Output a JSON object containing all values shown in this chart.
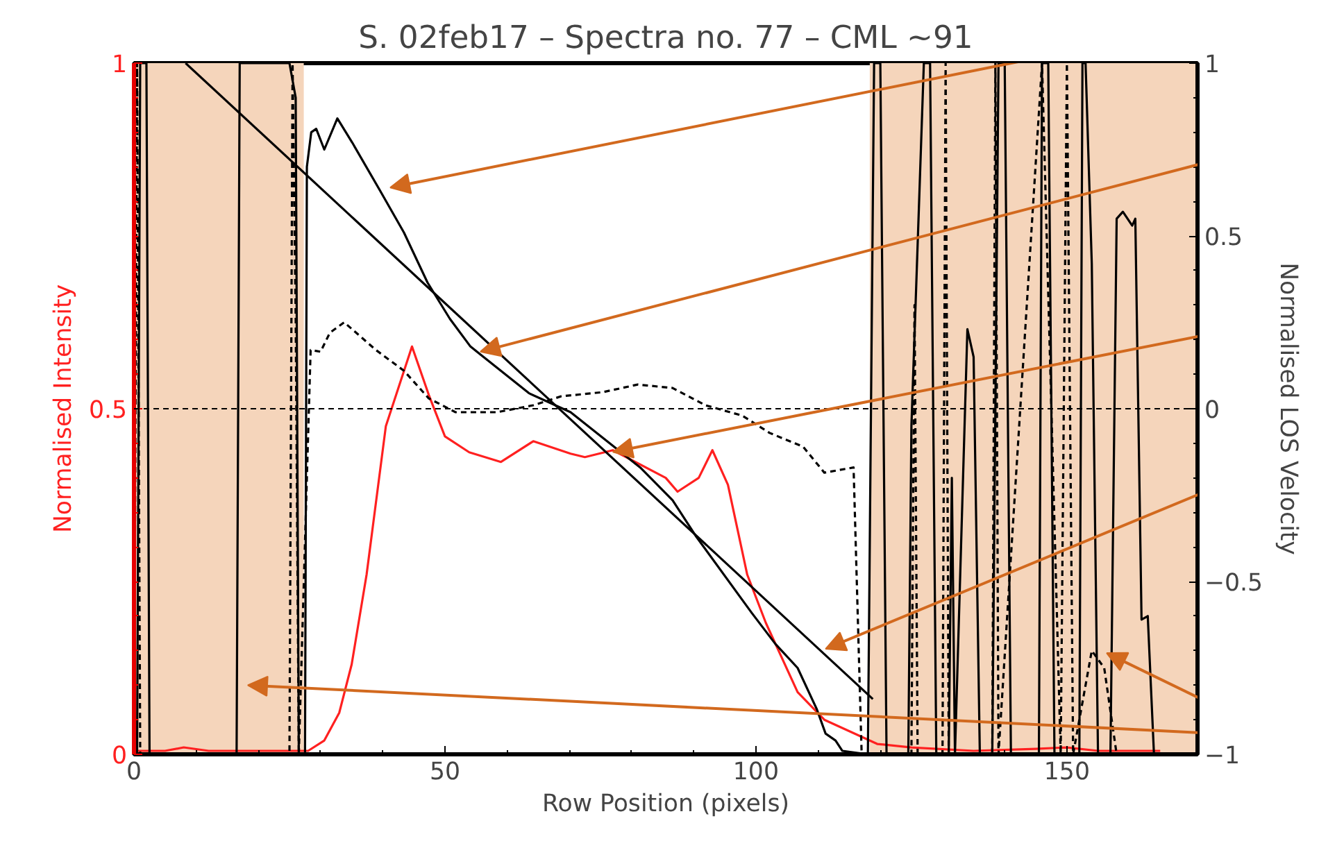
{
  "chart_data": {
    "type": "line",
    "title": "S. 02feb17 – Spectra no. 77 – CML ~91",
    "xlabel": "Row Position (pixels)",
    "ylabel": "Normalised Intensity",
    "y2label": "Normalised LOS Velocity",
    "xlim": [
      0,
      171
    ],
    "xticks": [
      0,
      50,
      100,
      150
    ],
    "ylim": [
      0,
      1
    ],
    "yticks": [
      0,
      0.5,
      1
    ],
    "y2lim": [
      -1,
      1
    ],
    "y2ticks": [
      -1,
      -0.5,
      0,
      0.5,
      1
    ],
    "grid": false,
    "marker": "none",
    "series": [
      {
        "color": "#ff2020",
        "line_style": "solid",
        "x": [
          0,
          5,
          8,
          12,
          20,
          26,
          28,
          30.6,
          33,
          35,
          37.4,
          40.5,
          44.7,
          47.4,
          50,
          53.9,
          59,
          64.2,
          70.2,
          72.5,
          77,
          85.5,
          87.4,
          90.8,
          93,
          95.5,
          98.6,
          101.6,
          106.7,
          111,
          119.5,
          125,
          135,
          145,
          150,
          155,
          160,
          165
        ],
        "values": [
          0.005,
          0.005,
          0.01,
          0.005,
          0.005,
          0.005,
          0.005,
          0.02,
          0.06,
          0.13,
          0.26,
          0.475,
          0.59,
          0.52,
          0.46,
          0.437,
          0.423,
          0.453,
          0.435,
          0.43,
          0.44,
          0.4,
          0.38,
          0.4,
          0.44,
          0.39,
          0.26,
          0.19,
          0.09,
          0.05,
          0.015,
          0.01,
          0.005,
          0.008,
          0.01,
          0.005,
          0.005,
          0.005
        ]
      },
      {
        "color": "#000000",
        "axis": "y2",
        "line_style": "solid",
        "x": [
          0.5,
          1,
          2,
          2.5,
          16.5,
          17,
          25,
          26,
          26.5,
          27.5,
          27.8,
          28.5,
          29.3,
          30.6,
          32.7,
          35.1,
          39.6,
          43.4,
          47.2,
          50.8,
          54.1,
          63.5,
          70.2,
          81.4,
          86.6,
          90.4,
          99.3,
          103.1,
          106.7,
          109.8,
          111.2,
          112.8,
          113.9,
          118,
          119,
          120,
          121,
          124.5,
          125,
          127,
          128,
          129,
          131,
          131.5,
          132,
          134,
          135,
          136,
          138,
          139,
          140,
          141,
          145.5,
          146,
          147,
          148,
          152,
          152.5,
          153,
          154,
          155,
          157,
          158,
          159,
          160.5,
          161,
          162,
          163,
          164,
          165
        ],
        "values": [
          -1,
          1,
          1,
          -1,
          -1,
          1,
          1,
          0.9,
          -1,
          -1,
          0.7,
          0.8,
          0.81,
          0.75,
          0.84,
          0.77,
          0.63,
          0.51,
          0.365,
          0.26,
          0.18,
          0.045,
          -0.01,
          -0.17,
          -0.265,
          -0.37,
          -0.59,
          -0.68,
          -0.75,
          -0.87,
          -0.94,
          -0.96,
          -0.99,
          -1,
          1,
          1,
          -1,
          -1,
          -0.05,
          1,
          1,
          -1,
          -1,
          -0.2,
          -1,
          0.23,
          0.15,
          -1,
          -1,
          1,
          1,
          -1,
          -1,
          1,
          1,
          -1,
          -1,
          1,
          1,
          0.42,
          -1,
          -1,
          0.55,
          0.57,
          0.53,
          0.55,
          -0.61,
          -0.6,
          -1,
          -1
        ]
      },
      {
        "color": "#000000",
        "axis": "y2",
        "line_style": "dashed",
        "x": [
          0,
          0.5,
          1,
          25,
          25.5,
          26,
          26.5,
          28.4,
          30,
          31.5,
          33.8,
          38.9,
          43.4,
          47.4,
          51.7,
          58.4,
          64.2,
          68.7,
          75.4,
          81,
          86.6,
          91.9,
          97.8,
          102.2,
          107.6,
          111,
          115.7,
          117,
          125,
          125.5,
          126,
          130,
          130.5,
          131,
          138,
          138.5,
          139,
          146,
          149,
          150,
          151,
          154,
          156,
          158
        ],
        "values": [
          -1,
          1,
          -1,
          -1,
          1,
          0.26,
          -1,
          0.17,
          0.165,
          0.22,
          0.25,
          0.17,
          0.11,
          0.03,
          -0.01,
          -0.01,
          0.01,
          0.036,
          0.048,
          0.07,
          0.06,
          0.01,
          -0.02,
          -0.07,
          -0.11,
          -0.185,
          -0.17,
          -1,
          -1,
          0.3,
          -1,
          -1,
          1,
          -1,
          -1,
          1,
          -1,
          1,
          -1,
          1,
          -1,
          -0.7,
          -0.75,
          -1
        ]
      },
      {
        "color": "#000000",
        "axis": "y2",
        "line_style": "solid",
        "x": [
          8.3,
          118.8
        ],
        "values": [
          1,
          -0.84
        ]
      }
    ],
    "ref_lines": [
      {
        "axis": "y2",
        "value": 0,
        "color": "#000000",
        "line_style": "dashed"
      }
    ],
    "bands": [
      {
        "axis": "x",
        "from": 0,
        "to": 27.3,
        "color": "#f5d5bb"
      },
      {
        "axis": "x",
        "from": 118.3,
        "to": 171,
        "color": "#f5d5bb"
      }
    ]
  }
}
